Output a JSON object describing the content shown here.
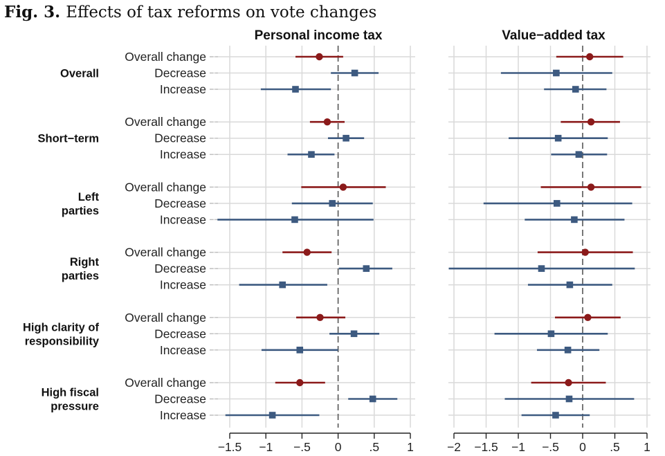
{
  "figure": {
    "number": "Fig. 3.",
    "caption": "Effects of tax reforms on vote changes"
  },
  "colors": {
    "overall": "#8b1a1a",
    "decrease_increase": "#3d5a80",
    "gridline": "#d9d9d9",
    "zero_line": "#555555",
    "axis": "#222222"
  },
  "chart_data": {
    "type": "forest",
    "title": "Effects of tax reforms on vote changes",
    "row_labels": [
      "Overall change",
      "Decrease",
      "Increase"
    ],
    "groups": [
      {
        "label": [
          "Overall"
        ]
      },
      {
        "label": [
          "Short−term"
        ]
      },
      {
        "label": [
          "Left",
          "parties"
        ]
      },
      {
        "label": [
          "Right",
          "parties"
        ]
      },
      {
        "label": [
          "High clarity of",
          "responsibility"
        ]
      },
      {
        "label": [
          "High fiscal",
          "pressure"
        ]
      }
    ],
    "panels": [
      {
        "title": "Personal income tax",
        "xlim": [
          -1.5,
          1
        ],
        "ticks": [
          -1.5,
          -1,
          -0.5,
          0,
          0.5,
          1
        ],
        "tick_labels": [
          "−1.5",
          "−1",
          "−.5",
          "0",
          ".5",
          "1"
        ],
        "reference_line": 0,
        "estimates": [
          [
            {
              "est": -0.26,
              "lo": -0.59,
              "hi": 0.07
            },
            {
              "est": 0.23,
              "lo": -0.1,
              "hi": 0.56
            },
            {
              "est": -0.59,
              "lo": -1.07,
              "hi": -0.1
            }
          ],
          [
            {
              "est": -0.15,
              "lo": -0.39,
              "hi": 0.09
            },
            {
              "est": 0.11,
              "lo": -0.14,
              "hi": 0.36
            },
            {
              "est": -0.37,
              "lo": -0.7,
              "hi": -0.05
            }
          ],
          [
            {
              "est": 0.07,
              "lo": -0.51,
              "hi": 0.66
            },
            {
              "est": -0.08,
              "lo": -0.64,
              "hi": 0.48
            },
            {
              "est": -0.6,
              "lo": -1.67,
              "hi": 0.49
            }
          ],
          [
            {
              "est": -0.43,
              "lo": -0.77,
              "hi": -0.09
            },
            {
              "est": 0.39,
              "lo": 0.01,
              "hi": 0.75
            },
            {
              "est": -0.77,
              "lo": -1.37,
              "hi": -0.15
            }
          ],
          [
            {
              "est": -0.25,
              "lo": -0.58,
              "hi": 0.1
            },
            {
              "est": 0.22,
              "lo": -0.12,
              "hi": 0.57
            },
            {
              "est": -0.53,
              "lo": -1.06,
              "hi": 0.0
            }
          ],
          [
            {
              "est": -0.53,
              "lo": -0.87,
              "hi": -0.18
            },
            {
              "est": 0.48,
              "lo": 0.14,
              "hi": 0.82
            },
            {
              "est": -0.91,
              "lo": -1.56,
              "hi": -0.26
            }
          ]
        ]
      },
      {
        "title": "Value−added tax",
        "xlim": [
          -2,
          1
        ],
        "ticks": [
          -2,
          -1.5,
          -1,
          -0.5,
          0,
          0.5,
          1
        ],
        "tick_labels": [
          "−2",
          "−1.5",
          "−1",
          "−.5",
          "0",
          ".5",
          "1"
        ],
        "reference_line": 0,
        "estimates": [
          [
            {
              "est": 0.11,
              "lo": -0.41,
              "hi": 0.63
            },
            {
              "est": -0.41,
              "lo": -1.27,
              "hi": 0.46
            },
            {
              "est": -0.11,
              "lo": -0.6,
              "hi": 0.37
            }
          ],
          [
            {
              "est": 0.13,
              "lo": -0.34,
              "hi": 0.58
            },
            {
              "est": -0.38,
              "lo": -1.15,
              "hi": 0.39
            },
            {
              "est": -0.06,
              "lo": -0.49,
              "hi": 0.38
            }
          ],
          [
            {
              "est": 0.13,
              "lo": -0.65,
              "hi": 0.91
            },
            {
              "est": -0.4,
              "lo": -1.54,
              "hi": 0.77
            },
            {
              "est": -0.13,
              "lo": -0.9,
              "hi": 0.65
            }
          ],
          [
            {
              "est": 0.04,
              "lo": -0.7,
              "hi": 0.78
            },
            {
              "est": -0.64,
              "lo": -2.08,
              "hi": 0.81
            },
            {
              "est": -0.2,
              "lo": -0.85,
              "hi": 0.46
            }
          ],
          [
            {
              "est": 0.08,
              "lo": -0.43,
              "hi": 0.59
            },
            {
              "est": -0.49,
              "lo": -1.37,
              "hi": 0.39
            },
            {
              "est": -0.23,
              "lo": -0.71,
              "hi": 0.26
            }
          ],
          [
            {
              "est": -0.22,
              "lo": -0.8,
              "hi": 0.36
            },
            {
              "est": -0.21,
              "lo": -1.21,
              "hi": 0.8
            },
            {
              "est": -0.42,
              "lo": -0.95,
              "hi": 0.11
            }
          ]
        ]
      }
    ],
    "markers": {
      "Overall change": "circle",
      "Decrease": "square",
      "Increase": "square"
    },
    "grid": true
  }
}
